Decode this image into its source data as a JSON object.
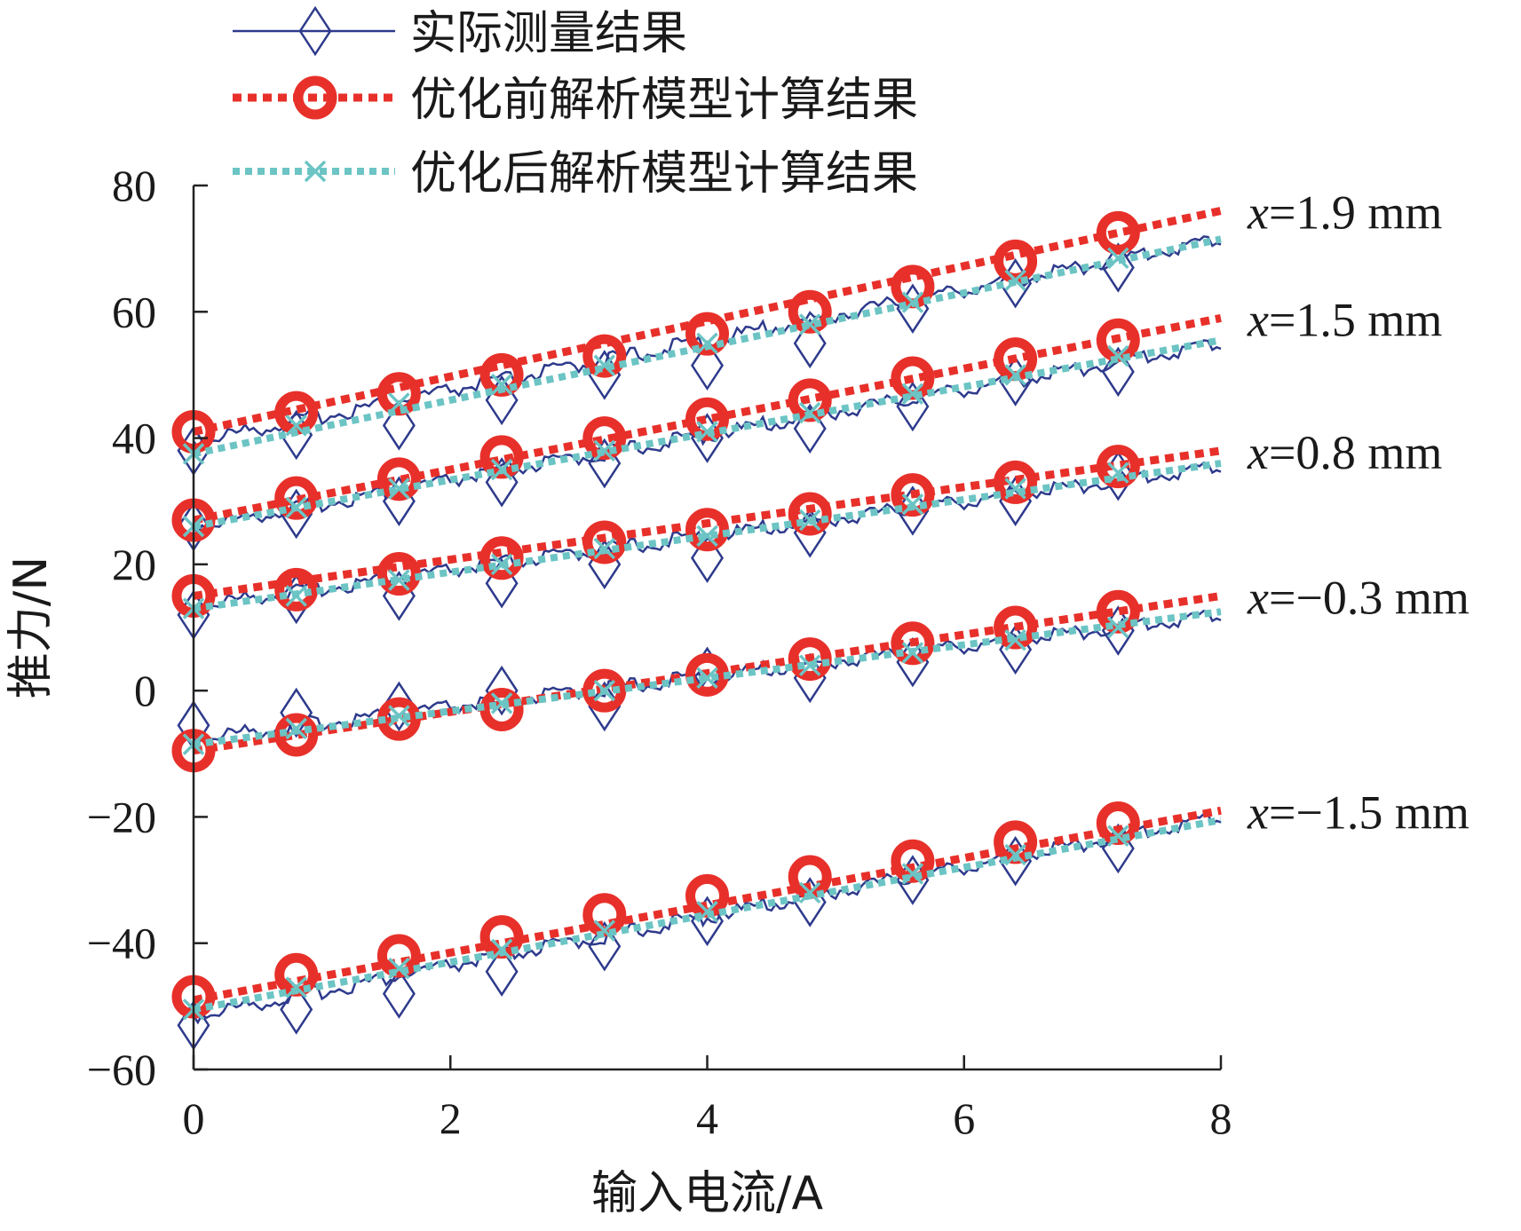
{
  "chart_data": {
    "type": "line",
    "title": "",
    "xlabel": "输入电流/A",
    "ylabel": "推力/N",
    "xlim": [
      0,
      8
    ],
    "ylim": [
      -60,
      80
    ],
    "xticks": [
      0,
      2,
      4,
      6,
      8
    ],
    "yticks": [
      -60,
      -40,
      -20,
      0,
      20,
      40,
      60,
      80
    ],
    "grid": false,
    "legend_position": "top",
    "legend": [
      {
        "key": "measured",
        "label": "实际测量结果",
        "color": "#2e3a8c",
        "marker": "diamond"
      },
      {
        "key": "before",
        "label": "优化前解析模型计算结果",
        "color": "#e8302a",
        "marker": "circle"
      },
      {
        "key": "after",
        "label": "优化后解析模型计算结果",
        "color": "#6cc4c4",
        "marker": "x"
      }
    ],
    "marker_x": [
      0,
      0.8,
      1.6,
      2.4,
      3.2,
      4.0,
      4.8,
      5.6,
      6.4,
      7.2
    ],
    "groups": [
      {
        "label": "=1.9 mm",
        "var": "x",
        "measured_markers": [
          38,
          40.5,
          42,
          46,
          50,
          51.5,
          55,
          60.5,
          64.5,
          67
        ],
        "measured_line": {
          "x": [
            0,
            8
          ],
          "y": [
            39.5,
            71.5
          ]
        },
        "before": {
          "x": [
            0,
            8
          ],
          "y": [
            41,
            76
          ]
        },
        "before_markers": [
          41,
          44,
          47,
          50,
          53,
          56.5,
          60,
          64,
          68,
          72.5
        ],
        "after": {
          "x": [
            0,
            8
          ],
          "y": [
            37.5,
            71.5
          ]
        },
        "after_markers": [
          37.5,
          42,
          45.5,
          48.5,
          51.5,
          55,
          58,
          61.5,
          65,
          68.5
        ]
      },
      {
        "label": "=1.5 mm",
        "var": "x",
        "measured_markers": [
          26,
          28,
          30,
          33,
          36,
          40,
          41.5,
          45,
          49,
          50.5
        ],
        "measured_line": {
          "x": [
            0,
            8
          ],
          "y": [
            26,
            55
          ]
        },
        "before": {
          "x": [
            0,
            8
          ],
          "y": [
            27,
            59
          ]
        },
        "before_markers": [
          27,
          30.5,
          33.5,
          37,
          40,
          43,
          46,
          49.5,
          52.5,
          55.5
        ],
        "after": {
          "x": [
            0,
            8
          ],
          "y": [
            26,
            55.5
          ]
        },
        "after_markers": [
          26,
          29,
          32,
          35,
          38,
          41,
          44,
          47,
          50,
          53
        ]
      },
      {
        "label": "=0.8 mm",
        "var": "x",
        "measured_markers": [
          12,
          14.5,
          15,
          17,
          20,
          21,
          25,
          28.5,
          30,
          34
        ],
        "measured_line": {
          "x": [
            0,
            8
          ],
          "y": [
            13.5,
            35.5
          ]
        },
        "before": {
          "x": [
            0,
            8
          ],
          "y": [
            15,
            38
          ]
        },
        "before_markers": [
          15,
          16,
          18.5,
          21,
          23.5,
          25.5,
          28,
          31,
          33,
          35.5
        ],
        "after": {
          "x": [
            0,
            8
          ],
          "y": [
            13,
            36
          ]
        },
        "after_markers": [
          13,
          15,
          17.5,
          20,
          22.5,
          24.5,
          27,
          29.5,
          32,
          34.5
        ]
      },
      {
        "label": "=−0.3 mm",
        "var": "x",
        "measured_markers": [
          -5.5,
          -3.5,
          -2.5,
          0,
          -2.5,
          3,
          2,
          4.5,
          6.5,
          9.5
        ],
        "measured_line": {
          "x": [
            0,
            8
          ],
          "y": [
            -7.5,
            12
          ]
        },
        "before": {
          "x": [
            0,
            8
          ],
          "y": [
            -9.5,
            15
          ]
        },
        "before_markers": [
          -9.5,
          -7,
          -4.5,
          -3,
          0,
          2.5,
          5,
          7.5,
          10,
          12.5
        ],
        "after": {
          "x": [
            0,
            8
          ],
          "y": [
            -8.5,
            12.5
          ]
        },
        "after_markers": [
          -8.5,
          -6,
          -4,
          -2,
          0,
          2,
          4,
          6,
          8,
          10
        ]
      },
      {
        "label": "=−1.5 mm",
        "var": "x",
        "measured_markers": [
          -53,
          -50.5,
          -48,
          -44.5,
          -40.5,
          -36.5,
          -33.5,
          -30,
          -27,
          -25
        ],
        "measured_line": {
          "x": [
            0,
            8
          ],
          "y": [
            -51.5,
            -20
          ]
        },
        "before": {
          "x": [
            0,
            8
          ],
          "y": [
            -49,
            -19
          ]
        },
        "before_markers": [
          -48.5,
          -45,
          -42,
          -39,
          -35.5,
          -32.5,
          -29.5,
          -27,
          -24,
          -21
        ],
        "after": {
          "x": [
            0,
            8
          ],
          "y": [
            -50.5,
            -20.5
          ]
        },
        "after_markers": [
          -50.5,
          -47,
          -44,
          -41,
          -38,
          -35,
          -32,
          -29,
          -26,
          -23
        ]
      }
    ]
  }
}
